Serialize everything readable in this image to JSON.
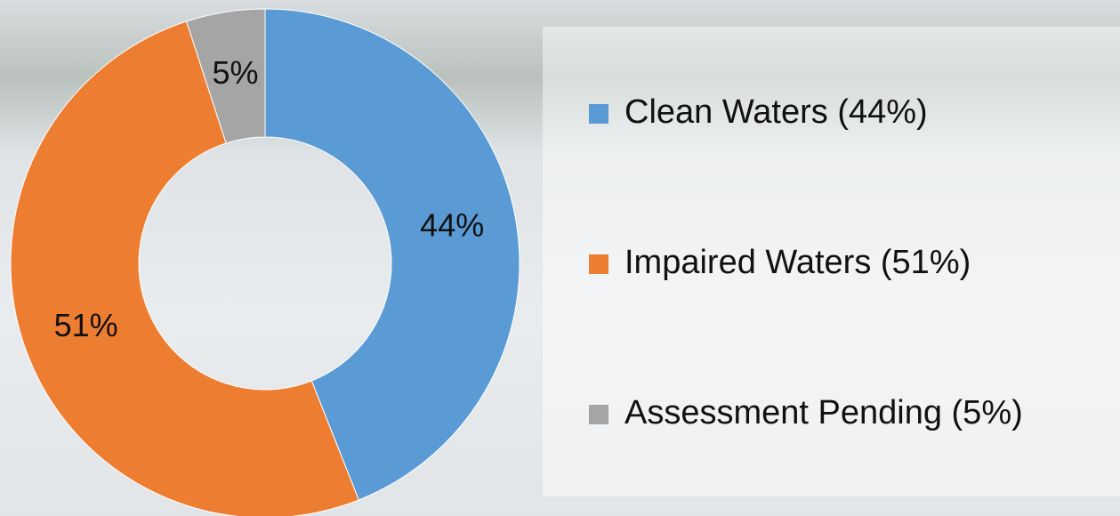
{
  "chart_data": {
    "type": "donut",
    "categories": [
      "Clean Waters (44%)",
      "Impaired Waters (51%)",
      "Assessment Pending (5%)"
    ],
    "values": [
      44,
      51,
      5
    ],
    "value_labels": [
      "44%",
      "51%",
      "5%"
    ],
    "colors": [
      "#5b9bd5",
      "#ed7d31",
      "#a5a5a5"
    ],
    "legend": "right"
  }
}
